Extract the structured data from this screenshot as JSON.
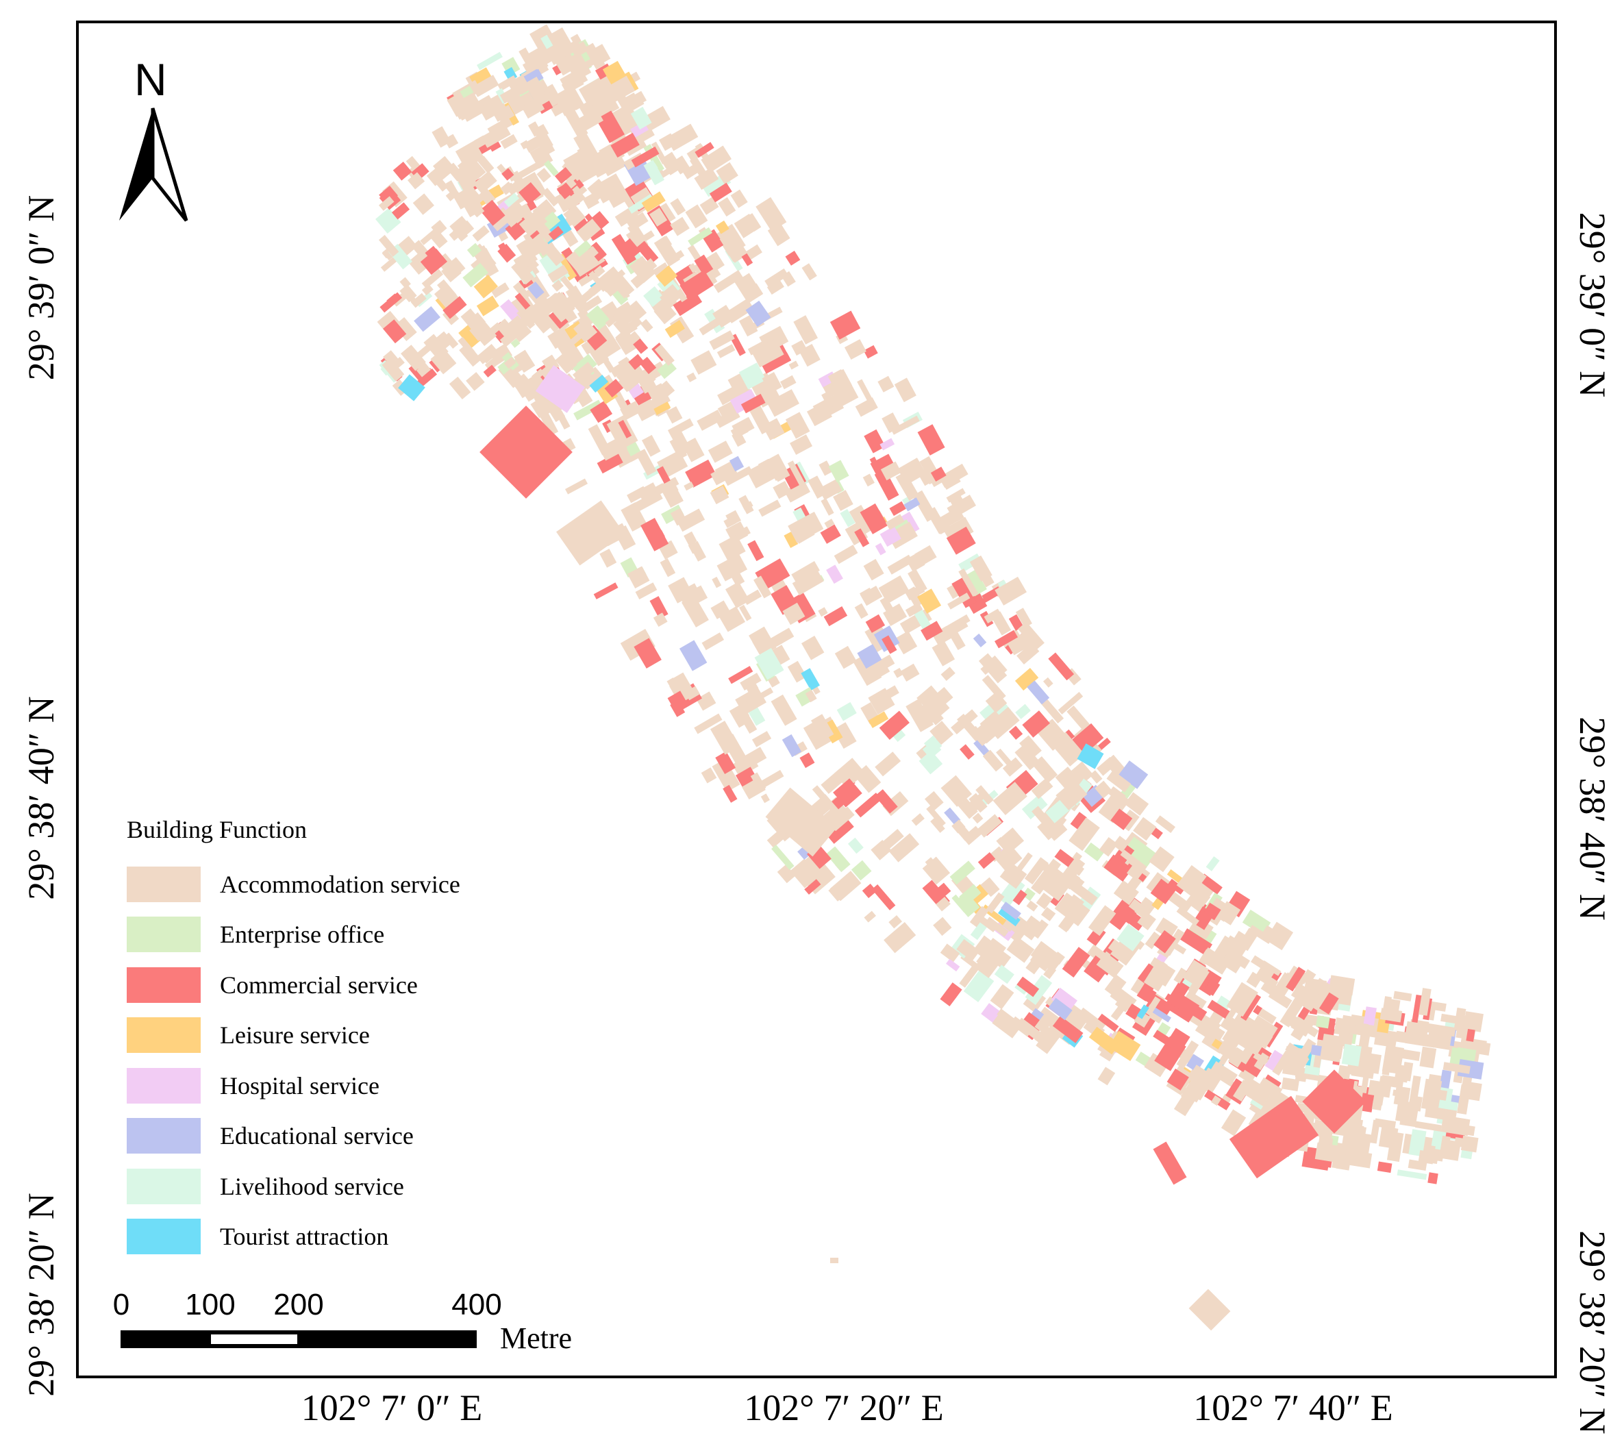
{
  "north_arrow": {
    "label": "N"
  },
  "legend": {
    "title": "Building Function",
    "items": [
      {
        "label": "Accommodation service",
        "color": "#F0D9C6"
      },
      {
        "label": "Enterprise office",
        "color": "#D9EFC5"
      },
      {
        "label": "Commercial service",
        "color": "#FA7B7B"
      },
      {
        "label": "Leisure service",
        "color": "#FFD27F"
      },
      {
        "label": "Hospital service",
        "color": "#F2CCF4"
      },
      {
        "label": "Educational service",
        "color": "#BCC3F0"
      },
      {
        "label": "Livelihood service",
        "color": "#DAF7E6"
      },
      {
        "label": "Tourist attraction",
        "color": "#6FDDF8"
      }
    ]
  },
  "scale_bar": {
    "ticks": [
      "0",
      "100",
      "200",
      "400"
    ],
    "unit": "Metre"
  },
  "graticule": {
    "longitudes": [
      "102° 7′ 0″ E",
      "102° 7′ 20″ E",
      "102° 7′ 40″ E"
    ],
    "latitudes": [
      "29° 39′ 0″ N",
      "29° 38′ 40″ N",
      "29° 38′ 20″ N"
    ]
  }
}
